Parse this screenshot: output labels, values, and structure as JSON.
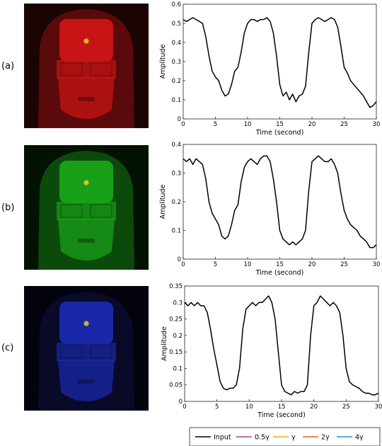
{
  "rows": [
    {
      "label": "(a)",
      "face_color": "#c81414",
      "bg_color": "#1a0404",
      "hair_color": "#5a0a0a",
      "dot_color": "#e8b820"
    },
    {
      "label": "(b)",
      "face_color": "#18a018",
      "bg_color": "#031203",
      "hair_color": "#0c4a0c",
      "dot_color": "#e8b820"
    },
    {
      "label": "(c)",
      "face_color": "#1a28a8",
      "bg_color": "#03030d",
      "hair_color": "#080a28",
      "dot_color": "#c8b030"
    }
  ],
  "legend": {
    "entries": [
      {
        "name": "Input",
        "color": "#000000"
      },
      {
        "name": "0.5γ",
        "color": "#a040a0"
      },
      {
        "name": "γ",
        "color": "#e8b020"
      },
      {
        "name": "2γ",
        "color": "#e06020"
      },
      {
        "name": "4γ",
        "color": "#2090d8"
      }
    ]
  },
  "chart_data": [
    {
      "type": "line",
      "xlabel": "Time (second)",
      "ylabel": "Amplitude",
      "xlim": [
        0,
        30
      ],
      "ylim": [
        0,
        0.6
      ],
      "xticks": [
        0,
        5,
        10,
        15,
        20,
        25,
        30
      ],
      "yticks": [
        0,
        0.1,
        0.2,
        0.3,
        0.4,
        0.5,
        0.6
      ],
      "x": [
        0,
        0.5,
        1,
        1.5,
        2,
        2.5,
        3,
        3.5,
        4,
        4.5,
        5,
        5.5,
        6,
        6.5,
        7,
        7.5,
        8,
        8.5,
        9,
        9.5,
        10,
        10.5,
        11,
        11.5,
        12,
        12.5,
        13,
        13.5,
        14,
        14.5,
        15,
        15.5,
        16,
        16.5,
        17,
        17.5,
        18,
        18.5,
        19,
        19.5,
        20,
        20.5,
        21,
        21.5,
        22,
        22.5,
        23,
        23.5,
        24,
        24.5,
        25,
        25.5,
        26,
        26.5,
        27,
        27.5,
        28,
        28.5,
        29,
        29.5,
        30
      ],
      "series": [
        {
          "name": "Input",
          "values": [
            0.52,
            0.51,
            0.52,
            0.53,
            0.52,
            0.51,
            0.5,
            0.43,
            0.33,
            0.25,
            0.22,
            0.2,
            0.15,
            0.12,
            0.13,
            0.18,
            0.25,
            0.27,
            0.35,
            0.45,
            0.5,
            0.52,
            0.52,
            0.51,
            0.52,
            0.52,
            0.53,
            0.51,
            0.45,
            0.33,
            0.18,
            0.12,
            0.14,
            0.1,
            0.13,
            0.09,
            0.12,
            0.13,
            0.17,
            0.35,
            0.5,
            0.52,
            0.53,
            0.52,
            0.51,
            0.52,
            0.53,
            0.52,
            0.48,
            0.38,
            0.27,
            0.24,
            0.2,
            0.18,
            0.16,
            0.14,
            0.12,
            0.09,
            0.06,
            0.07,
            0.09
          ]
        }
      ]
    },
    {
      "type": "line",
      "xlabel": "Time (second)",
      "ylabel": "Amplitude",
      "xlim": [
        0,
        30
      ],
      "ylim": [
        0,
        0.4
      ],
      "xticks": [
        0,
        5,
        10,
        15,
        20,
        25,
        30
      ],
      "yticks": [
        0,
        0.1,
        0.2,
        0.3,
        0.4
      ],
      "x": [
        0,
        0.5,
        1,
        1.5,
        2,
        2.5,
        3,
        3.5,
        4,
        4.5,
        5,
        5.5,
        6,
        6.5,
        7,
        7.5,
        8,
        8.5,
        9,
        9.5,
        10,
        10.5,
        11,
        11.5,
        12,
        12.5,
        13,
        13.5,
        14,
        14.5,
        15,
        15.5,
        16,
        16.5,
        17,
        17.5,
        18,
        18.5,
        19,
        19.5,
        20,
        20.5,
        21,
        21.5,
        22,
        22.5,
        23,
        23.5,
        24,
        24.5,
        25,
        25.5,
        26,
        26.5,
        27,
        27.5,
        28,
        28.5,
        29,
        29.5,
        30
      ],
      "series": [
        {
          "name": "Input",
          "values": [
            0.35,
            0.34,
            0.35,
            0.33,
            0.35,
            0.34,
            0.33,
            0.28,
            0.2,
            0.16,
            0.14,
            0.12,
            0.08,
            0.07,
            0.08,
            0.12,
            0.17,
            0.19,
            0.27,
            0.32,
            0.34,
            0.35,
            0.34,
            0.33,
            0.35,
            0.36,
            0.36,
            0.34,
            0.28,
            0.2,
            0.1,
            0.07,
            0.06,
            0.05,
            0.06,
            0.05,
            0.06,
            0.07,
            0.1,
            0.24,
            0.34,
            0.35,
            0.36,
            0.35,
            0.34,
            0.34,
            0.35,
            0.33,
            0.3,
            0.23,
            0.17,
            0.14,
            0.12,
            0.11,
            0.1,
            0.08,
            0.07,
            0.06,
            0.04,
            0.04,
            0.05
          ]
        }
      ]
    },
    {
      "type": "line",
      "xlabel": "Time (second)",
      "ylabel": "Amplitude",
      "xlim": [
        0,
        30
      ],
      "ylim": [
        0,
        0.35
      ],
      "xticks": [
        0,
        5,
        10,
        15,
        20,
        25,
        30
      ],
      "yticks": [
        0,
        0.05,
        0.1,
        0.15,
        0.2,
        0.25,
        0.3,
        0.35
      ],
      "x": [
        0,
        0.5,
        1,
        1.5,
        2,
        2.5,
        3,
        3.5,
        4,
        4.5,
        5,
        5.5,
        6,
        6.5,
        7,
        7.5,
        8,
        8.5,
        9,
        9.5,
        10,
        10.5,
        11,
        11.5,
        12,
        12.5,
        13,
        13.5,
        14,
        14.5,
        15,
        15.5,
        16,
        16.5,
        17,
        17.5,
        18,
        18.5,
        19,
        19.5,
        20,
        20.5,
        21,
        21.5,
        22,
        22.5,
        23,
        23.5,
        24,
        24.5,
        25,
        25.5,
        26,
        26.5,
        27,
        27.5,
        28,
        28.5,
        29,
        29.5,
        30
      ],
      "series": [
        {
          "name": "Input",
          "values": [
            0.3,
            0.29,
            0.3,
            0.29,
            0.3,
            0.29,
            0.29,
            0.27,
            0.22,
            0.16,
            0.11,
            0.06,
            0.04,
            0.035,
            0.04,
            0.04,
            0.05,
            0.1,
            0.22,
            0.28,
            0.29,
            0.3,
            0.29,
            0.3,
            0.3,
            0.31,
            0.32,
            0.3,
            0.25,
            0.15,
            0.05,
            0.03,
            0.025,
            0.02,
            0.03,
            0.025,
            0.03,
            0.03,
            0.05,
            0.2,
            0.29,
            0.3,
            0.32,
            0.31,
            0.3,
            0.29,
            0.3,
            0.29,
            0.27,
            0.2,
            0.1,
            0.06,
            0.05,
            0.045,
            0.04,
            0.03,
            0.025,
            0.025,
            0.02,
            0.02,
            0.025
          ]
        }
      ]
    }
  ]
}
